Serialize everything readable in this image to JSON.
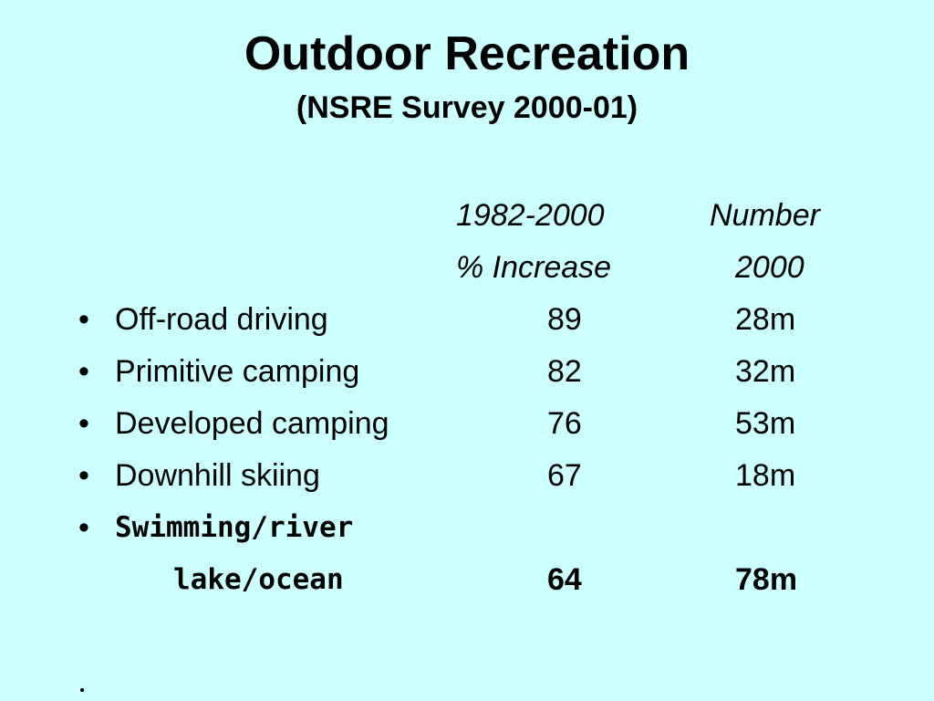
{
  "slide": {
    "title": "Outdoor Recreation",
    "subtitle": "(NSRE Survey 2000-01)"
  },
  "table": {
    "header_line1": {
      "col1": "1982-2000",
      "col2": "Number"
    },
    "header_line2": {
      "col1": "% Increase",
      "col2": "2000"
    },
    "rows": [
      {
        "bullet": "•",
        "label": "Off-road driving",
        "increase": "89",
        "number": "28m"
      },
      {
        "bullet": "•",
        "label": "Primitive camping",
        "increase": "82",
        "number": "32m"
      },
      {
        "bullet": "•",
        "label": "Developed camping",
        "increase": "76",
        "number": "53m"
      },
      {
        "bullet": "•",
        "label": "Downhill skiing",
        "increase": "67",
        "number": "18m"
      }
    ],
    "highlight_row": {
      "bullet": "•",
      "label_line1": "Swimming/river",
      "label_line2": "lake/ocean",
      "increase": "64",
      "number": "78m"
    }
  }
}
